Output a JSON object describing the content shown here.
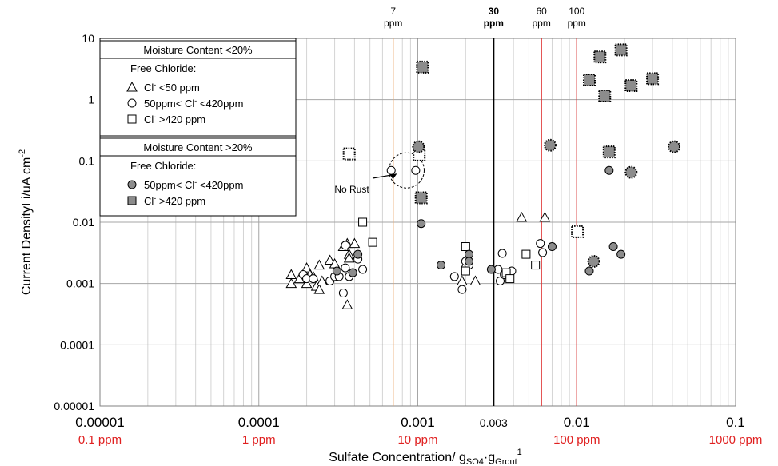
{
  "chart_data": {
    "type": "scatter",
    "x_scale": "log",
    "y_scale": "log",
    "xlim": [
      1e-05,
      0.1
    ],
    "ylim": [
      1e-05,
      10
    ],
    "grid": true,
    "xlabel_main": "Sulfate Concentration/ g",
    "xlabel_sub1": "SO4",
    "xlabel_mid": "·g",
    "xlabel_sub2": "Grout",
    "xlabel_sup": "1",
    "ylabel_main": "Current DensityI i/uA cm",
    "ylabel_sup": "-2",
    "x_ticks": [
      {
        "value": 1e-05,
        "label": "0.00001",
        "ppm": "0.1 ppm"
      },
      {
        "value": 0.0001,
        "label": "0.0001",
        "ppm": "1 ppm"
      },
      {
        "value": 0.001,
        "label": "0.001",
        "ppm": "10 ppm"
      },
      {
        "value": 0.003,
        "label": "0.003",
        "ppm": ""
      },
      {
        "value": 0.01,
        "label": "0.01",
        "ppm": "100 ppm"
      },
      {
        "value": 0.1,
        "label": "0.1",
        "ppm": "1000 ppm"
      }
    ],
    "y_ticks": [
      {
        "value": 10,
        "label": "10"
      },
      {
        "value": 1,
        "label": "1"
      },
      {
        "value": 0.1,
        "label": "0.1"
      },
      {
        "value": 0.01,
        "label": "0.01"
      },
      {
        "value": 0.001,
        "label": "0.001"
      },
      {
        "value": 0.0001,
        "label": "0.0001"
      },
      {
        "value": 1e-05,
        "label": "0.00001"
      }
    ],
    "vlines": [
      {
        "x": 0.0007,
        "color": "#f0a868",
        "width": 1.3,
        "label1": "7",
        "label2": "ppm",
        "bold": false
      },
      {
        "x": 0.003,
        "color": "#000000",
        "width": 2,
        "label1": "30",
        "label2": "ppm",
        "bold": true
      },
      {
        "x": 0.006,
        "color": "#e03030",
        "width": 1.3,
        "label1": "60",
        "label2": "ppm",
        "bold": false
      },
      {
        "x": 0.01,
        "color": "#e03030",
        "width": 1.3,
        "label1": "100",
        "label2": "ppm",
        "bold": false
      }
    ],
    "annotation": {
      "text": "No Rust",
      "circle_x": 0.00085,
      "circle_y": 0.07
    },
    "legend": {
      "placement": "top-left",
      "groups": [
        {
          "header": "Moisture Content <20%",
          "subtitle": "Free Chloride:",
          "items": [
            {
              "marker": "triangle",
              "label_a": "Cl",
              "sup": "-",
              "label_b": " <50 ppm"
            },
            {
              "marker": "circle",
              "label_a": "50ppm< Cl",
              "sup": "-",
              "label_b": " <420ppm"
            },
            {
              "marker": "square",
              "label_a": "Cl",
              "sup": "-",
              "label_b": " >420 ppm"
            }
          ]
        },
        {
          "header": "Moisture Content >20%",
          "subtitle": "Free Chloride:",
          "items": [
            {
              "marker": "gray-circle",
              "label_a": "50ppm< Cl",
              "sup": "-",
              "label_b": " <420ppm"
            },
            {
              "marker": "gray-square",
              "label_a": "Cl",
              "sup": "-",
              "label_b": " >420 ppm"
            }
          ]
        }
      ]
    },
    "series": [
      {
        "marker": "triangle",
        "points": [
          [
            0.00016,
            0.0014
          ],
          [
            0.00016,
            0.001
          ],
          [
            0.00018,
            0.0012
          ],
          [
            0.0002,
            0.0018
          ],
          [
            0.0002,
            0.001
          ],
          [
            0.00021,
            0.0014
          ],
          [
            0.00022,
            0.0013
          ],
          [
            0.00023,
            0.0009
          ],
          [
            0.00024,
            0.002
          ],
          [
            0.00024,
            0.0008
          ],
          [
            0.00025,
            0.0011
          ],
          [
            0.00028,
            0.0024
          ],
          [
            0.0003,
            0.0021
          ],
          [
            0.00034,
            0.004
          ],
          [
            0.00036,
            0.0045
          ],
          [
            0.00037,
            0.003
          ],
          [
            0.00037,
            0.0026
          ],
          [
            0.0004,
            0.0045
          ],
          [
            0.00036,
            0.00045
          ],
          [
            0.0019,
            0.0011
          ],
          [
            0.0023,
            0.0011
          ],
          [
            0.0045,
            0.012
          ],
          [
            0.0063,
            0.012
          ]
        ]
      },
      {
        "marker": "circle",
        "points": [
          [
            0.00019,
            0.0014
          ],
          [
            0.0002,
            0.0012
          ],
          [
            0.00022,
            0.0012
          ],
          [
            0.00028,
            0.0011
          ],
          [
            0.0003,
            0.0013
          ],
          [
            0.00032,
            0.0013
          ],
          [
            0.00034,
            0.0007
          ],
          [
            0.00035,
            0.0042
          ],
          [
            0.00035,
            0.0018
          ],
          [
            0.00037,
            0.0013
          ],
          [
            0.00039,
            0.0015
          ],
          [
            0.00042,
            0.0025
          ],
          [
            0.00045,
            0.0017
          ],
          [
            0.00068,
            0.07
          ],
          [
            0.00097,
            0.07
          ],
          [
            0.0017,
            0.0013
          ],
          [
            0.0019,
            0.0008
          ],
          [
            0.002,
            0.0018
          ],
          [
            0.002,
            0.0023
          ],
          [
            0.0021,
            0.002
          ],
          [
            0.0032,
            0.0017
          ],
          [
            0.0033,
            0.0011
          ],
          [
            0.0034,
            0.0031
          ],
          [
            0.0035,
            0.0014
          ],
          [
            0.0039,
            0.0016
          ],
          [
            0.0059,
            0.0045
          ],
          [
            0.0061,
            0.0032
          ]
        ]
      },
      {
        "marker": "square",
        "points": [
          [
            0.00045,
            0.01
          ],
          [
            0.00052,
            0.0047
          ],
          [
            0.002,
            0.004
          ],
          [
            0.002,
            0.0016
          ],
          [
            0.0036,
            0.0015
          ],
          [
            0.0038,
            0.0012
          ],
          [
            0.0048,
            0.003
          ],
          [
            0.0055,
            0.002
          ]
        ]
      },
      {
        "marker": "gray-circle",
        "points": [
          [
            0.00031,
            0.0016
          ],
          [
            0.00039,
            0.0015
          ],
          [
            0.00042,
            0.003
          ],
          [
            0.00105,
            0.0095
          ],
          [
            0.0014,
            0.002
          ],
          [
            0.0021,
            0.003
          ],
          [
            0.0021,
            0.0023
          ],
          [
            0.0029,
            0.0017
          ],
          [
            0.007,
            0.004
          ],
          [
            0.012,
            0.0016
          ],
          [
            0.016,
            0.07
          ],
          [
            0.017,
            0.004
          ],
          [
            0.019,
            0.003
          ]
        ]
      },
      {
        "marker": "gray-square",
        "points": [
          [
            0.00107,
            3.4
          ],
          [
            0.00105,
            0.025
          ],
          [
            0.012,
            2.1
          ],
          [
            0.014,
            5.0
          ],
          [
            0.015,
            1.15
          ],
          [
            0.016,
            0.14
          ],
          [
            0.019,
            6.5
          ],
          [
            0.022,
            1.7
          ],
          [
            0.03,
            2.2
          ]
        ]
      },
      {
        "marker": "dotted-square",
        "points": [
          [
            0.00037,
            0.13
          ],
          [
            0.00102,
            0.125
          ],
          [
            0.0101,
            0.007
          ]
        ]
      },
      {
        "marker": "dotted-circle",
        "points": [
          [
            0.00101,
            0.17
          ],
          [
            0.0068,
            0.18
          ],
          [
            0.0128,
            0.0023
          ],
          [
            0.022,
            0.065
          ],
          [
            0.041,
            0.17
          ]
        ]
      }
    ]
  }
}
